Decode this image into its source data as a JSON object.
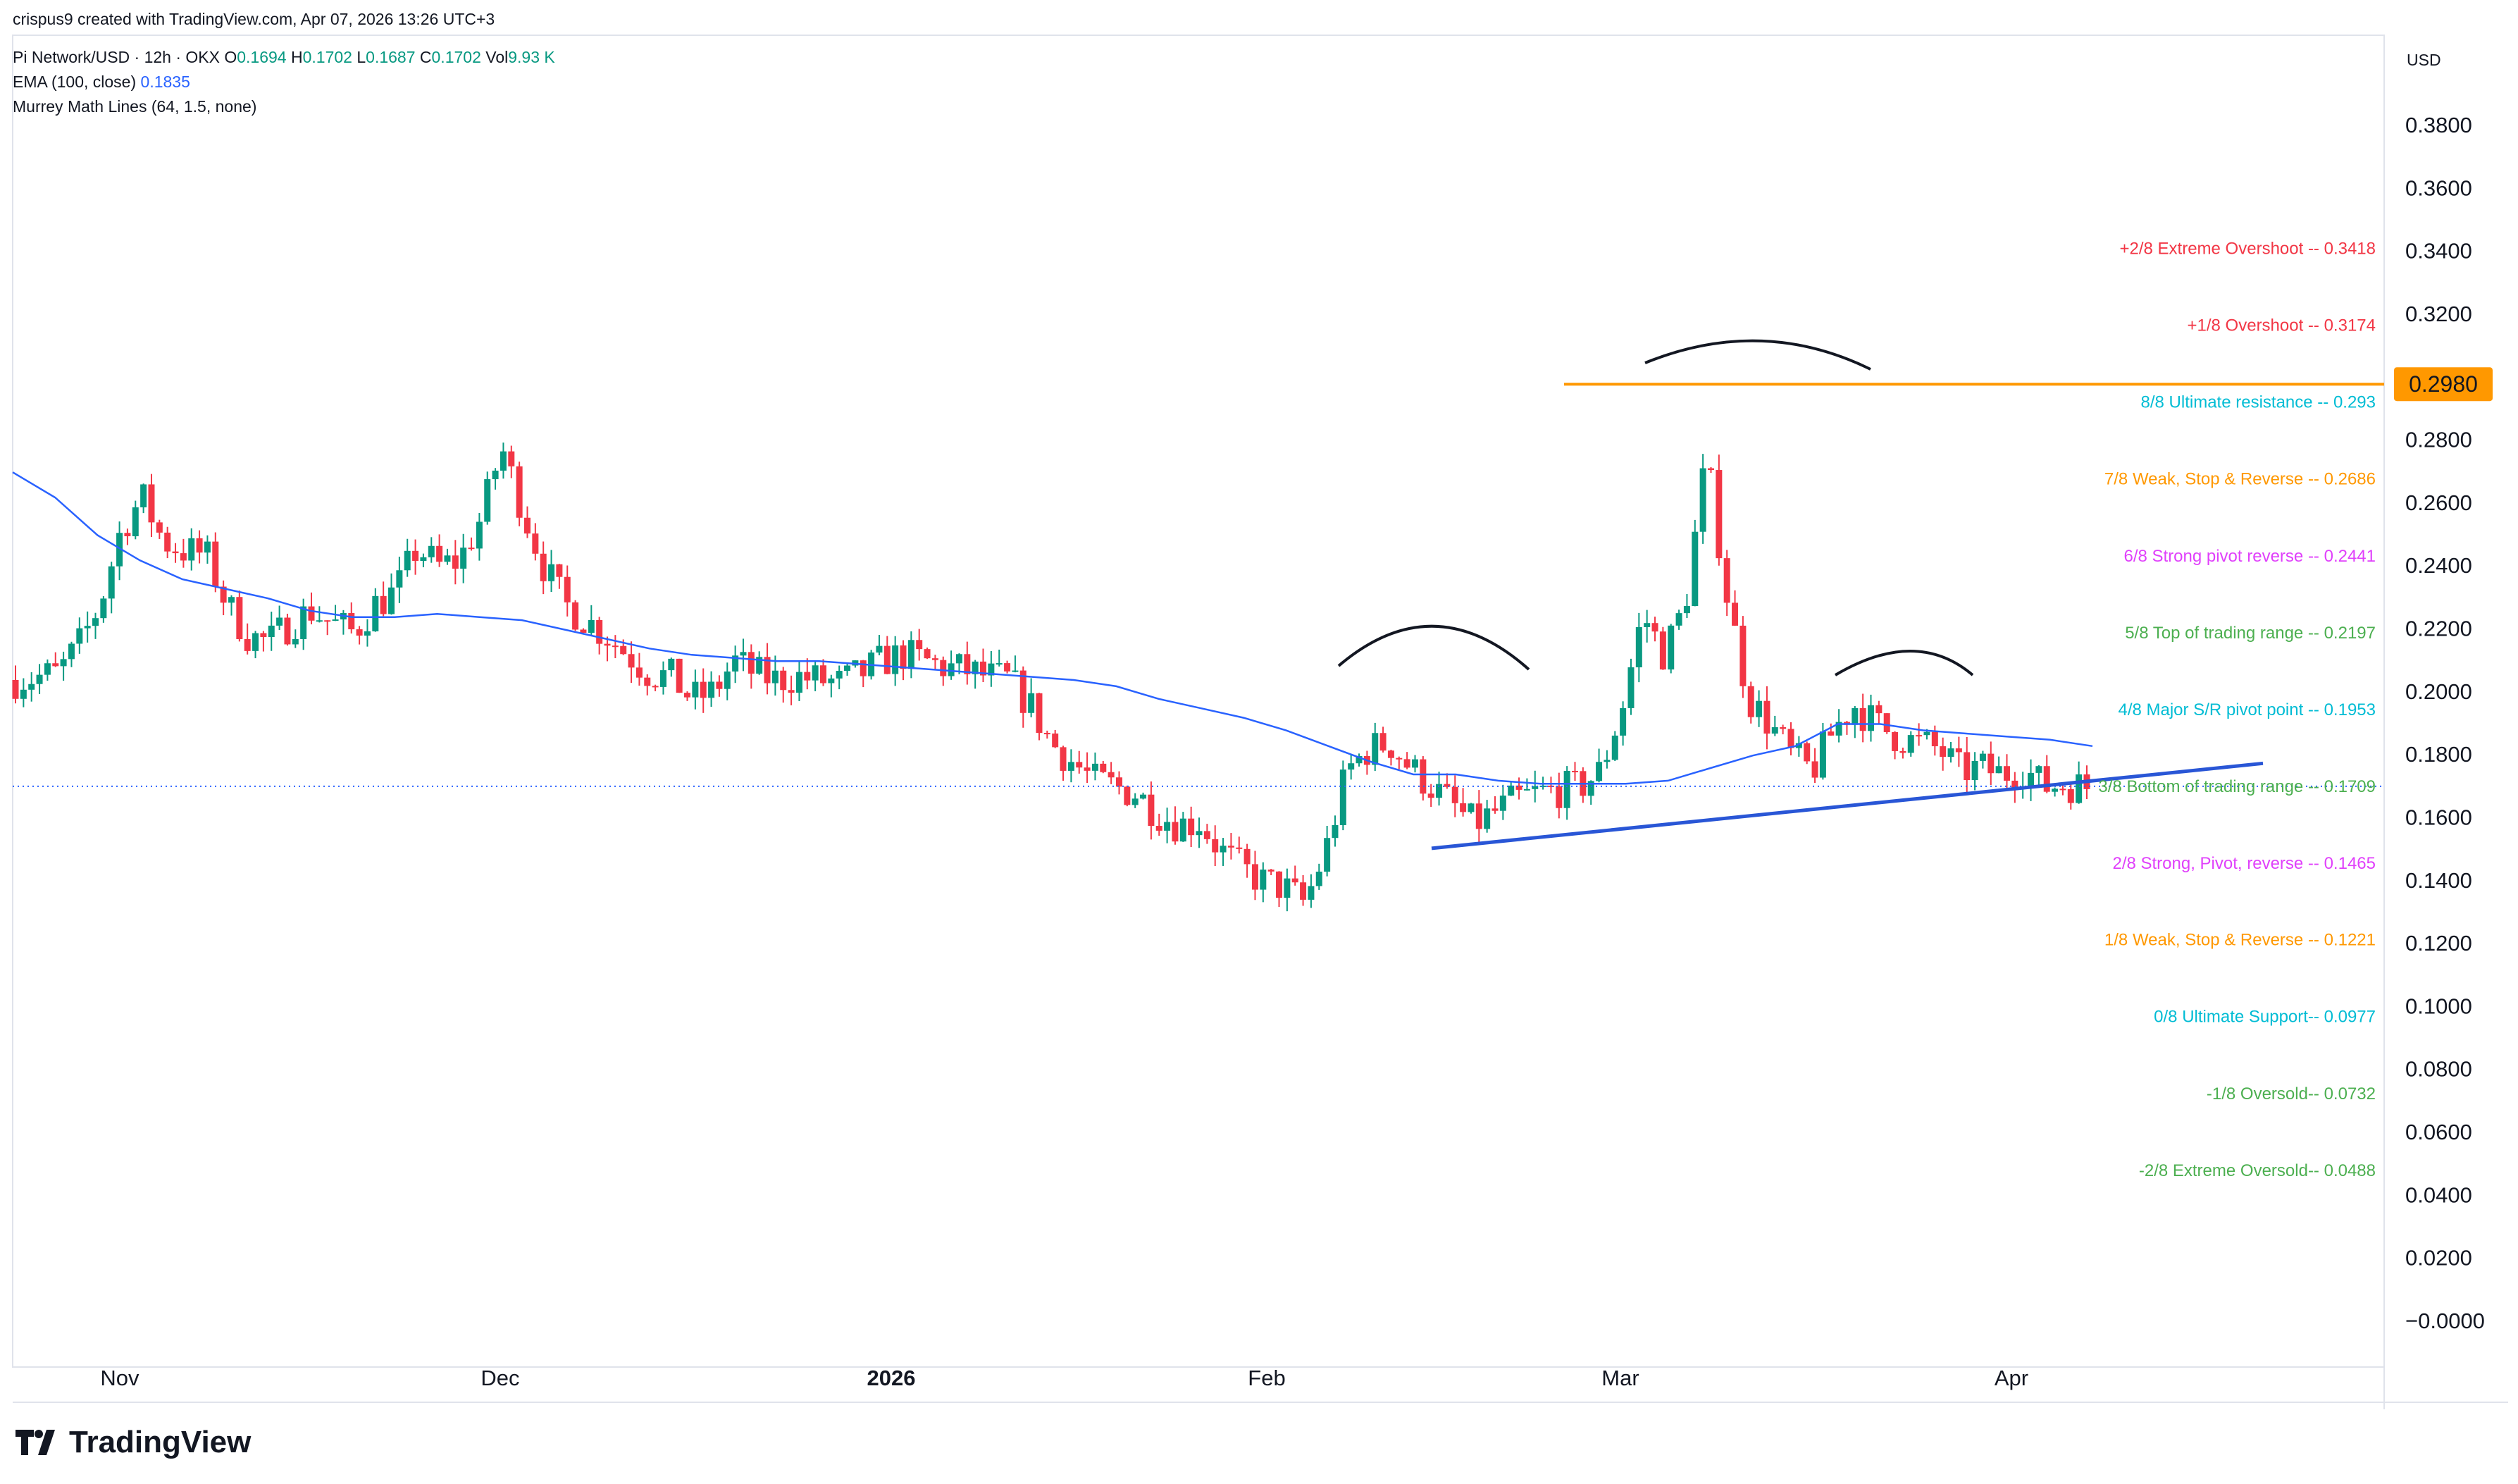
{
  "header": {
    "created_by": "crispus9 created with TradingView.com, Apr 07, 2026 13:26 UTC+3",
    "symbol": "Pi Network/USD · 12h · OKX",
    "ohlc": [
      {
        "key": "O",
        "value": "0.1694"
      },
      {
        "key": "H",
        "value": "0.1702"
      },
      {
        "key": "L",
        "value": "0.1687"
      },
      {
        "key": "C",
        "value": "0.1702"
      },
      {
        "key": "Vol",
        "value": "9.93 K"
      }
    ],
    "ema_label": "EMA (100, close)",
    "ema_value": "0.1835",
    "murrey_label": "Murrey Math Lines (64, 1.5, none)"
  },
  "currency": "USD",
  "branding": {
    "logo_text": "TradingView"
  },
  "chart_data": {
    "type": "candlestick",
    "ylim": [
      0,
      0.39
    ],
    "y_ticks": [
      "0.3800",
      "0.3600",
      "0.3400",
      "0.3200",
      "0.2800",
      "0.2600",
      "0.2400",
      "0.2200",
      "0.2000",
      "0.1800",
      "0.1600",
      "0.1400",
      "0.1200",
      "0.1000",
      "0.0800",
      "0.0600",
      "0.0400",
      "0.0200",
      "−0.0000"
    ],
    "x_labels": [
      "Nov",
      "Dec",
      "2026",
      "Feb",
      "Mar",
      "Apr"
    ],
    "last_price": 0.1702,
    "resistance": {
      "value": 0.298,
      "label": "0.2980"
    },
    "murrey_lines": [
      {
        "label": "+2/8 Extreme Overshoot --  0.3418",
        "value": 0.3418,
        "color": "#f23645"
      },
      {
        "label": "+1/8 Overshoot --  0.3174",
        "value": 0.3174,
        "color": "#f23645"
      },
      {
        "label": "8/8 Ultimate resistance --  0.293",
        "value": 0.293,
        "color": "#00bcd4"
      },
      {
        "label": "7/8 Weak, Stop & Reverse --  0.2686",
        "value": 0.2686,
        "color": "#ff9800"
      },
      {
        "label": "6/8 Strong pivot reverse --  0.2441",
        "value": 0.2441,
        "color": "#e040fb"
      },
      {
        "label": "5/8 Top of trading range --  0.2197",
        "value": 0.2197,
        "color": "#4caf50"
      },
      {
        "label": "4/8 Major S/R pivot point --  0.1953",
        "value": 0.1953,
        "color": "#00bcd4"
      },
      {
        "label": "3/8 Bottom of trading range --  0.1709",
        "value": 0.1709,
        "color": "#4caf50"
      },
      {
        "label": "2/8 Strong, Pivot, reverse --  0.1465",
        "value": 0.1465,
        "color": "#e040fb"
      },
      {
        "label": "1/8 Weak, Stop & Reverse --  0.1221",
        "value": 0.1221,
        "color": "#ff9800"
      },
      {
        "label": "0/8 Ultimate Support--  0.0977",
        "value": 0.0977,
        "color": "#00bcd4"
      },
      {
        "label": "-1/8 Oversold--  0.0732",
        "value": 0.0732,
        "color": "#4caf50"
      },
      {
        "label": "-2/8 Extreme Oversold--  0.0488",
        "value": 0.0488,
        "color": "#4caf50"
      }
    ],
    "close_path": [
      0.204,
      0.205,
      0.206,
      0.215,
      0.228,
      0.252,
      0.262,
      0.248,
      0.245,
      0.244,
      0.228,
      0.218,
      0.216,
      0.222,
      0.226,
      0.222,
      0.219,
      0.228,
      0.232,
      0.246,
      0.24,
      0.242,
      0.255,
      0.278,
      0.258,
      0.24,
      0.228,
      0.223,
      0.218,
      0.212,
      0.206,
      0.205,
      0.198,
      0.2,
      0.21,
      0.206,
      0.204,
      0.205,
      0.204,
      0.203,
      0.206,
      0.21,
      0.212,
      0.21,
      0.208,
      0.207,
      0.205,
      0.204,
      0.196,
      0.184,
      0.178,
      0.172,
      0.17,
      0.168,
      0.162,
      0.158,
      0.159,
      0.15,
      0.144,
      0.14,
      0.138,
      0.133,
      0.15,
      0.175,
      0.182,
      0.184,
      0.176,
      0.17,
      0.164,
      0.158,
      0.162,
      0.166,
      0.168,
      0.169,
      0.17,
      0.175,
      0.195,
      0.225,
      0.212,
      0.228,
      0.275,
      0.23,
      0.198,
      0.19,
      0.18,
      0.175,
      0.188,
      0.196,
      0.19,
      0.186,
      0.184,
      0.182,
      0.175,
      0.176,
      0.174,
      0.176,
      0.17,
      0.171,
      0.17
    ],
    "ema_path": [
      0.27,
      0.262,
      0.25,
      0.242,
      0.236,
      0.233,
      0.23,
      0.226,
      0.224,
      0.224,
      0.225,
      0.224,
      0.223,
      0.22,
      0.217,
      0.214,
      0.212,
      0.211,
      0.21,
      0.21,
      0.209,
      0.208,
      0.207,
      0.206,
      0.205,
      0.204,
      0.202,
      0.198,
      0.195,
      0.192,
      0.188,
      0.183,
      0.178,
      0.174,
      0.174,
      0.172,
      0.171,
      0.171,
      0.171,
      0.172,
      0.176,
      0.18,
      0.183,
      0.19,
      0.19,
      0.188,
      0.187,
      0.186,
      0.185,
      0.183
    ],
    "ema_color": "#2962ff",
    "up_color": "#089981",
    "down_color": "#f23645"
  }
}
